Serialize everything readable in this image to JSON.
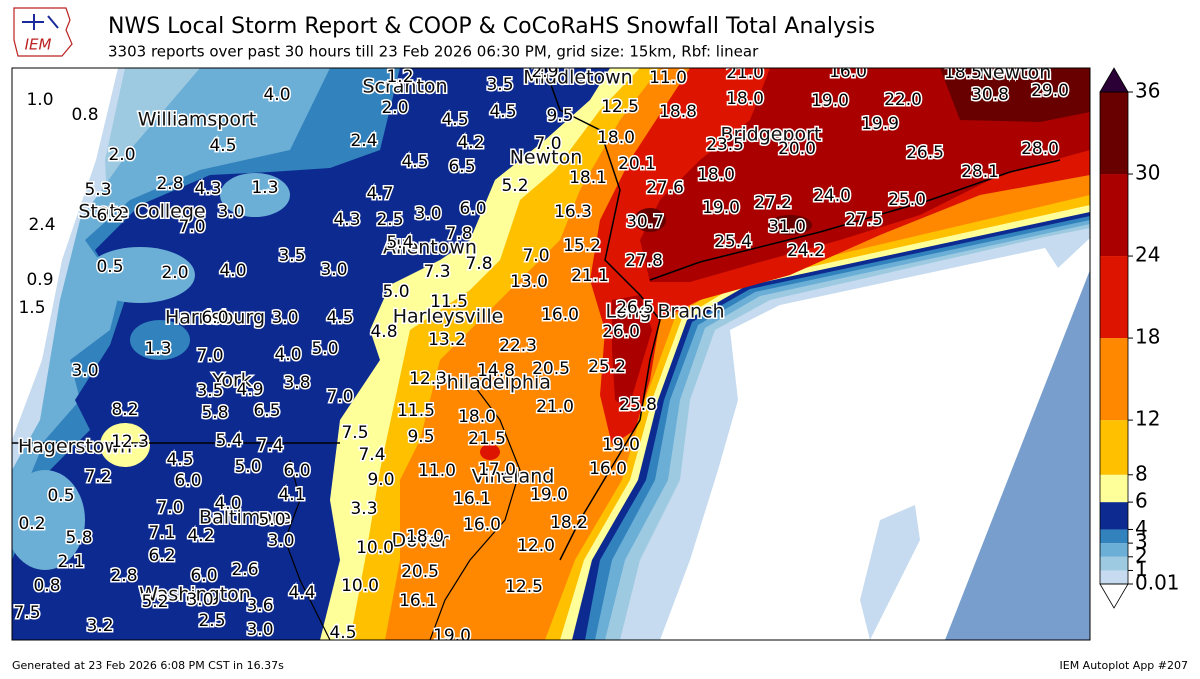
{
  "header": {
    "logo": "IEM",
    "title": "NWS Local Storm Report & COOP & CoCoRaHS Snowfall Total Analysis",
    "subtitle": "3303 reports over past 30 hours till 23 Feb 2026 06:30 PM, grid size: 15km, Rbf: linear"
  },
  "map": {
    "cities": [
      "Scranton",
      "Middletown",
      "Newton",
      "Williamsport",
      "Newton",
      "Bridgeport",
      "State College",
      "Allentown",
      "Harleysville",
      "Harrisburg",
      "Long Branch",
      "Philadelphia",
      "Hagerstown",
      "York",
      "Vineland",
      "Baltimore",
      "Dover",
      "Washington"
    ],
    "station_values": [
      "1.0",
      "0.8",
      "4.0",
      "1.2",
      "3.5",
      "2.9",
      "11.0",
      "21.0",
      "16.0",
      "18.5",
      "30.8",
      "29.0",
      "2.0",
      "4.5",
      "4.5",
      "9.5",
      "12.5",
      "18.8",
      "18.0",
      "19.0",
      "22.0",
      "19.9",
      "4.5",
      "2.4",
      "4.2",
      "7.0",
      "18.0",
      "23.5",
      "20.0",
      "26.5",
      "28.0",
      "2.0",
      "4.5",
      "6.5",
      "5.2",
      "20.1",
      "18.1",
      "27.6",
      "18.0",
      "28.1",
      "5.3",
      "2.8",
      "4.3",
      "1.3",
      "4.7",
      "6.0",
      "19.0",
      "27.2",
      "24.0",
      "25.0",
      "6.2",
      "3.0",
      "7.0",
      "4.3",
      "2.5",
      "3.0",
      "16.3",
      "30.7",
      "31.0",
      "27.5",
      "2.4",
      "7.8",
      "5.4",
      "15.2",
      "25.4",
      "24.2",
      "3.5",
      "3.0",
      "7.0",
      "7.8",
      "27.8",
      "0.5",
      "2.0",
      "4.0",
      "7.3",
      "21.1",
      "13.0",
      "0.9",
      "1.5",
      "5.0",
      "11.5",
      "16.0",
      "26.5",
      "6.0",
      "3.0",
      "4.5",
      "4.8",
      "13.2",
      "26.0",
      "22.3",
      "1.3",
      "7.0",
      "4.0",
      "5.0",
      "3.0",
      "12.3",
      "14.8",
      "20.5",
      "25.2",
      "3.5",
      "4.9",
      "3.8",
      "7.0",
      "8.2",
      "5.8",
      "6.5",
      "11.5",
      "18.0",
      "21.0",
      "25.8",
      "12.3",
      "5.4",
      "7.4",
      "7.5",
      "9.5",
      "21.5",
      "19.0",
      "4.5",
      "5.0",
      "6.0",
      "7.4",
      "11.0",
      "17.0",
      "16.0",
      "7.2",
      "6.0",
      "9.0",
      "0.5",
      "4.1",
      "16.1",
      "19.0",
      "7.0",
      "4.0",
      "3.3",
      "5.0",
      "18.2",
      "16.0",
      "0.2",
      "7.1",
      "4.2",
      "3.0",
      "5.8",
      "18.0",
      "12.0",
      "10.0",
      "6.2",
      "2.1",
      "2.6",
      "6.0",
      "2.8",
      "20.5",
      "0.8",
      "12.5",
      "10.0",
      "4.4",
      "5.2",
      "3.0",
      "3.6",
      "16.1",
      "7.5",
      "3.2",
      "2.5",
      "3.0",
      "4.5",
      "19.0"
    ]
  },
  "colorbar": {
    "levels": [
      0.01,
      1,
      2,
      3,
      4,
      6,
      8,
      12,
      18,
      24,
      30,
      36
    ],
    "colors": [
      "#c6dbef",
      "#9ecae1",
      "#6baed6",
      "#3182bd",
      "#0c2a8f",
      "#ffff99",
      "#ffc000",
      "#ff8800",
      "#dd1500",
      "#aa0000",
      "#680000"
    ],
    "over_color": "#2a0036",
    "under_color": "#ffffff"
  },
  "footer": {
    "left": "Generated at 23 Feb 2026 6:08 PM CST in 16.37s",
    "right": "IEM Autoplot App #207"
  }
}
